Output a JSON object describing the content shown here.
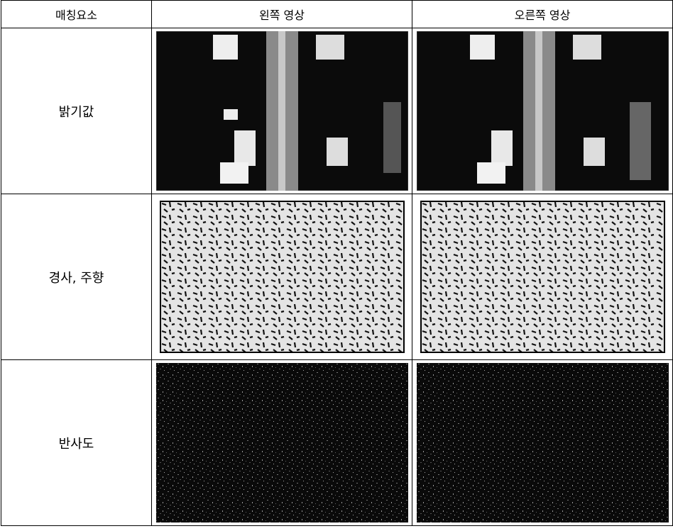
{
  "table": {
    "header": [
      "매칭요소",
      "왼쪽 영상",
      "오른쪽 영상"
    ],
    "rows": [
      "밝기값",
      "경사, 주향",
      "반사도"
    ]
  }
}
